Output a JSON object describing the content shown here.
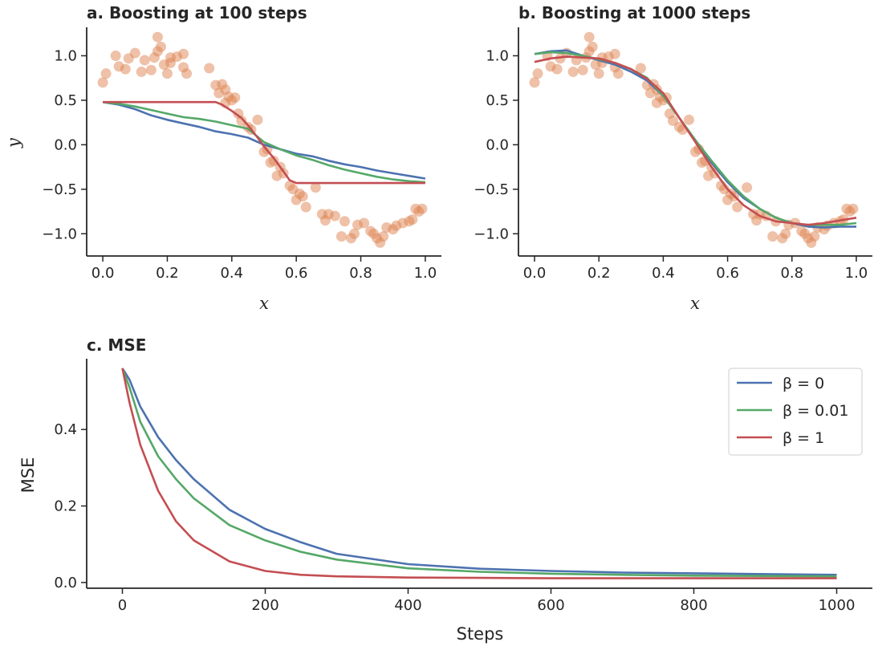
{
  "chart_data": [
    {
      "type": "scatter+line",
      "title": "a. Boosting at 100 steps",
      "xlabel": "x",
      "ylabel": "y",
      "xlim": [
        -0.05,
        1.05
      ],
      "ylim": [
        -1.25,
        1.32
      ],
      "xticks": [
        "0.0",
        "0.2",
        "0.4",
        "0.6",
        "0.8",
        "1.0"
      ],
      "yticks": [
        "−1.0",
        "−0.5",
        "0.0",
        "0.5",
        "1.0"
      ],
      "scatter_points": [
        [
          0.0,
          0.7
        ],
        [
          0.01,
          0.8
        ],
        [
          0.04,
          1.0
        ],
        [
          0.05,
          0.88
        ],
        [
          0.07,
          0.85
        ],
        [
          0.08,
          0.97
        ],
        [
          0.1,
          1.03
        ],
        [
          0.12,
          0.82
        ],
        [
          0.13,
          0.95
        ],
        [
          0.15,
          0.84
        ],
        [
          0.16,
          0.98
        ],
        [
          0.17,
          1.05
        ],
        [
          0.17,
          1.21
        ],
        [
          0.18,
          1.1
        ],
        [
          0.19,
          0.9
        ],
        [
          0.2,
          0.8
        ],
        [
          0.21,
          0.98
        ],
        [
          0.21,
          0.92
        ],
        [
          0.23,
          0.99
        ],
        [
          0.25,
          0.87
        ],
        [
          0.25,
          1.02
        ],
        [
          0.26,
          0.8
        ],
        [
          0.33,
          0.86
        ],
        [
          0.35,
          0.67
        ],
        [
          0.36,
          0.58
        ],
        [
          0.37,
          0.68
        ],
        [
          0.38,
          0.62
        ],
        [
          0.38,
          0.47
        ],
        [
          0.39,
          0.54
        ],
        [
          0.4,
          0.5
        ],
        [
          0.41,
          0.53
        ],
        [
          0.42,
          0.35
        ],
        [
          0.43,
          0.27
        ],
        [
          0.45,
          0.2
        ],
        [
          0.46,
          0.17
        ],
        [
          0.48,
          0.28
        ],
        [
          0.5,
          -0.08
        ],
        [
          0.51,
          -0.05
        ],
        [
          0.52,
          -0.2
        ],
        [
          0.53,
          -0.18
        ],
        [
          0.54,
          -0.35
        ],
        [
          0.55,
          -0.25
        ],
        [
          0.56,
          -0.32
        ],
        [
          0.58,
          -0.46
        ],
        [
          0.59,
          -0.5
        ],
        [
          0.6,
          -0.62
        ],
        [
          0.61,
          -0.55
        ],
        [
          0.62,
          -0.58
        ],
        [
          0.63,
          -0.7
        ],
        [
          0.66,
          -0.48
        ],
        [
          0.68,
          -0.78
        ],
        [
          0.69,
          -0.85
        ],
        [
          0.7,
          -0.78
        ],
        [
          0.72,
          -0.8
        ],
        [
          0.74,
          -1.03
        ],
        [
          0.75,
          -0.86
        ],
        [
          0.77,
          -1.05
        ],
        [
          0.78,
          -1.0
        ],
        [
          0.79,
          -0.9
        ],
        [
          0.81,
          -0.88
        ],
        [
          0.83,
          -0.97
        ],
        [
          0.84,
          -1.0
        ],
        [
          0.85,
          -1.05
        ],
        [
          0.86,
          -1.1
        ],
        [
          0.87,
          -1.03
        ],
        [
          0.88,
          -0.93
        ],
        [
          0.9,
          -0.95
        ],
        [
          0.91,
          -0.91
        ],
        [
          0.93,
          -0.88
        ],
        [
          0.95,
          -0.86
        ],
        [
          0.96,
          -0.84
        ],
        [
          0.97,
          -0.72
        ],
        [
          0.98,
          -0.75
        ],
        [
          0.99,
          -0.72
        ]
      ],
      "series": [
        {
          "name": "β = 0",
          "color": "#4c72b0",
          "x": [
            0.0,
            0.05,
            0.1,
            0.15,
            0.2,
            0.25,
            0.3,
            0.35,
            0.4,
            0.45,
            0.5,
            0.55,
            0.6,
            0.65,
            0.7,
            0.75,
            0.8,
            0.85,
            0.9,
            0.95,
            1.0
          ],
          "y": [
            0.48,
            0.45,
            0.4,
            0.33,
            0.28,
            0.24,
            0.2,
            0.15,
            0.12,
            0.08,
            0.0,
            -0.05,
            -0.1,
            -0.13,
            -0.18,
            -0.22,
            -0.25,
            -0.29,
            -0.32,
            -0.35,
            -0.38
          ]
        },
        {
          "name": "β = 0.01",
          "color": "#55a868",
          "x": [
            0.0,
            0.05,
            0.1,
            0.15,
            0.2,
            0.25,
            0.3,
            0.35,
            0.4,
            0.45,
            0.5,
            0.55,
            0.6,
            0.65,
            0.7,
            0.75,
            0.8,
            0.85,
            0.9,
            0.95,
            1.0
          ],
          "y": [
            0.48,
            0.46,
            0.43,
            0.39,
            0.35,
            0.31,
            0.29,
            0.26,
            0.22,
            0.18,
            0.03,
            -0.05,
            -0.12,
            -0.17,
            -0.23,
            -0.28,
            -0.32,
            -0.36,
            -0.39,
            -0.41,
            -0.42
          ]
        },
        {
          "name": "β = 1",
          "color": "#c44e52",
          "x": [
            0.0,
            0.05,
            0.1,
            0.15,
            0.2,
            0.25,
            0.3,
            0.35,
            0.37,
            0.4,
            0.43,
            0.45,
            0.48,
            0.5,
            0.53,
            0.56,
            0.58,
            0.6,
            0.7,
            0.8,
            0.9,
            1.0
          ],
          "y": [
            0.48,
            0.48,
            0.48,
            0.48,
            0.48,
            0.48,
            0.48,
            0.48,
            0.45,
            0.38,
            0.3,
            0.22,
            0.08,
            -0.02,
            -0.15,
            -0.3,
            -0.4,
            -0.43,
            -0.43,
            -0.43,
            -0.43,
            -0.43
          ]
        }
      ]
    },
    {
      "type": "scatter+line",
      "title": "b. Boosting at 1000 steps",
      "xlabel": "x",
      "ylabel": "",
      "xlim": [
        -0.05,
        1.05
      ],
      "ylim": [
        -1.25,
        1.32
      ],
      "xticks": [
        "0.0",
        "0.2",
        "0.4",
        "0.6",
        "0.8",
        "1.0"
      ],
      "yticks": [
        "−1.0",
        "−0.5",
        "0.0",
        "0.5",
        "1.0"
      ],
      "scatter_points": "same as panel a",
      "series": [
        {
          "name": "β = 0",
          "color": "#4c72b0",
          "x": [
            0.0,
            0.05,
            0.1,
            0.15,
            0.2,
            0.25,
            0.3,
            0.35,
            0.4,
            0.45,
            0.5,
            0.55,
            0.6,
            0.65,
            0.7,
            0.75,
            0.8,
            0.85,
            0.9,
            0.95,
            1.0
          ],
          "y": [
            1.02,
            1.05,
            1.06,
            1.0,
            0.95,
            0.9,
            0.82,
            0.72,
            0.55,
            0.3,
            0.05,
            -0.2,
            -0.42,
            -0.6,
            -0.72,
            -0.82,
            -0.88,
            -0.92,
            -0.93,
            -0.92,
            -0.92
          ]
        },
        {
          "name": "β = 0.01",
          "color": "#55a868",
          "x": [
            0.0,
            0.05,
            0.1,
            0.15,
            0.2,
            0.25,
            0.3,
            0.35,
            0.4,
            0.45,
            0.5,
            0.55,
            0.6,
            0.65,
            0.7,
            0.75,
            0.8,
            0.85,
            0.9,
            0.95,
            1.0
          ],
          "y": [
            1.02,
            1.04,
            1.03,
            1.0,
            0.96,
            0.92,
            0.85,
            0.75,
            0.55,
            0.3,
            0.05,
            -0.18,
            -0.4,
            -0.58,
            -0.72,
            -0.82,
            -0.88,
            -0.9,
            -0.9,
            -0.9,
            -0.88
          ]
        },
        {
          "name": "β = 1",
          "color": "#c44e52",
          "x": [
            0.0,
            0.05,
            0.1,
            0.15,
            0.2,
            0.25,
            0.3,
            0.35,
            0.4,
            0.45,
            0.5,
            0.55,
            0.6,
            0.65,
            0.7,
            0.75,
            0.8,
            0.85,
            0.9,
            0.95,
            1.0
          ],
          "y": [
            0.93,
            0.97,
            0.99,
            0.98,
            0.97,
            0.92,
            0.85,
            0.74,
            0.58,
            0.3,
            0.03,
            -0.25,
            -0.5,
            -0.68,
            -0.8,
            -0.86,
            -0.88,
            -0.9,
            -0.88,
            -0.85,
            -0.82
          ]
        }
      ]
    },
    {
      "type": "line",
      "title": "c. MSE",
      "xlabel": "Steps",
      "ylabel": "MSE",
      "xlim": [
        -50,
        1050
      ],
      "ylim": [
        -0.015,
        0.585
      ],
      "xticks": [
        "0",
        "200",
        "400",
        "600",
        "800",
        "1000"
      ],
      "yticks": [
        "0.0",
        "0.2",
        "0.4"
      ],
      "legend_position": "top-right",
      "series": [
        {
          "name": "β = 0",
          "color": "#4c72b0",
          "x": [
            0,
            10,
            25,
            50,
            75,
            100,
            150,
            200,
            250,
            300,
            400,
            500,
            600,
            700,
            800,
            900,
            1000
          ],
          "y": [
            0.56,
            0.53,
            0.46,
            0.38,
            0.32,
            0.27,
            0.19,
            0.14,
            0.105,
            0.075,
            0.048,
            0.036,
            0.03,
            0.026,
            0.024,
            0.022,
            0.02
          ]
        },
        {
          "name": "β = 0.01",
          "color": "#55a868",
          "x": [
            0,
            10,
            25,
            50,
            75,
            100,
            150,
            200,
            250,
            300,
            400,
            500,
            600,
            700,
            800,
            900,
            1000
          ],
          "y": [
            0.56,
            0.51,
            0.42,
            0.33,
            0.27,
            0.22,
            0.15,
            0.11,
            0.08,
            0.06,
            0.037,
            0.028,
            0.023,
            0.02,
            0.018,
            0.017,
            0.016
          ]
        },
        {
          "name": "β = 1",
          "color": "#c44e52",
          "x": [
            0,
            10,
            25,
            50,
            75,
            100,
            150,
            200,
            250,
            300,
            400,
            500,
            600,
            700,
            800,
            900,
            1000
          ],
          "y": [
            0.56,
            0.47,
            0.36,
            0.24,
            0.16,
            0.11,
            0.055,
            0.03,
            0.02,
            0.016,
            0.013,
            0.012,
            0.011,
            0.011,
            0.011,
            0.011,
            0.011
          ]
        }
      ],
      "legend_labels": [
        "β = 0",
        "β = 0.01",
        "β = 1"
      ]
    }
  ]
}
